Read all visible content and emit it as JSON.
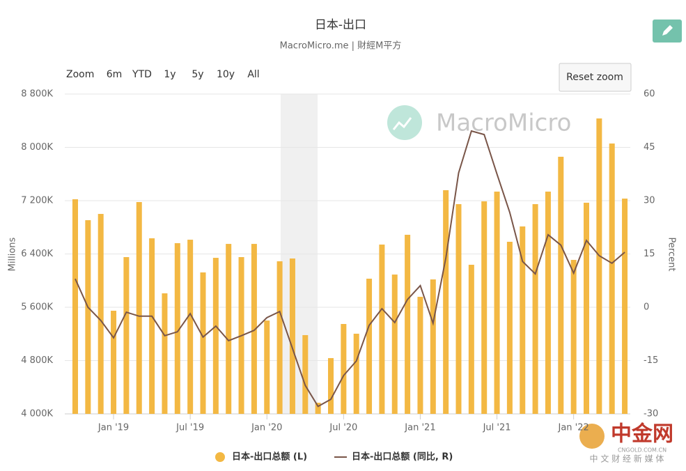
{
  "chart_data": {
    "type": "combo",
    "title": "日本-出口",
    "subtitle": "MacroMicro.me | 財經M平方",
    "zoom_buttons": [
      "Zoom",
      "6m",
      "YTD",
      "1y",
      "5y",
      "10y",
      "All"
    ],
    "reset_button": "Reset zoom",
    "watermark": "MacroMicro",
    "corner_logo": {
      "name": "中金网",
      "site": "CNGOLD.COM.CN",
      "slogan": "中 文 财 经 新 媒 体"
    },
    "ylabel": "Millions",
    "y2label": "Percent",
    "categories": [
      null,
      null,
      null,
      "Jan '19",
      null,
      null,
      null,
      null,
      null,
      "Jul '19",
      null,
      null,
      null,
      null,
      null,
      "Jan '20",
      null,
      null,
      null,
      null,
      null,
      "Jul '20",
      null,
      null,
      null,
      null,
      null,
      "Jan '21",
      null,
      null,
      null,
      null,
      null,
      "Jul '21",
      null,
      null,
      null,
      null,
      null,
      "Jan '22",
      null,
      null,
      null,
      null
    ],
    "ylim": [
      4000000,
      8800000
    ],
    "yticks": [
      {
        "value": 4000000,
        "label": "4 000K"
      },
      {
        "value": 4800000,
        "label": "4 800K"
      },
      {
        "value": 5600000,
        "label": "5 600K"
      },
      {
        "value": 6400000,
        "label": "6 400K"
      },
      {
        "value": 7200000,
        "label": "7 200K"
      },
      {
        "value": 8000000,
        "label": "8 000K"
      },
      {
        "value": 8800000,
        "label": "8 800K"
      }
    ],
    "y2lim": [
      -30,
      60
    ],
    "y2ticks": [
      -30,
      -15,
      0,
      15,
      30,
      45,
      60
    ],
    "grid": true,
    "series": [
      {
        "name": "日本-出口总额 (L)",
        "type": "bar",
        "color": "#f3b843",
        "values": [
          7221000,
          6907000,
          7001000,
          5548000,
          6353000,
          7179000,
          6635000,
          5809000,
          6562000,
          6614000,
          6123000,
          6342000,
          6551000,
          6353000,
          6551000,
          5401000,
          6290000,
          6332000,
          5182000,
          4167000,
          4837000,
          5349000,
          5203000,
          6029000,
          6541000,
          6091000,
          6688000,
          5757000,
          6018000,
          7357000,
          7148000,
          6238000,
          7190000,
          7336000,
          6583000,
          6813000,
          7148000,
          7336000,
          7859000,
          6311000,
          7169000,
          8434000,
          8058000,
          7231000
        ]
      },
      {
        "name": "日本-出口总额 (同比, R)",
        "type": "line",
        "axis": "y2",
        "color": "#795548",
        "values": [
          8.0,
          0,
          -3.7,
          -8.6,
          -1.4,
          -2.5,
          -2.5,
          -8.0,
          -6.9,
          -1.8,
          -8.4,
          -5.3,
          -9.4,
          -8.0,
          -6.5,
          -2.9,
          -1.2,
          -11.6,
          -22.0,
          -27.9,
          -25.9,
          -19.2,
          -15.1,
          -5.1,
          -0.4,
          -4.3,
          2.2,
          6.1,
          -4.5,
          13.9,
          37.8,
          49.6,
          48.6,
          37.5,
          26.7,
          12.9,
          9.4,
          20.4,
          17.5,
          9.6,
          18.8,
          14.5,
          12.4,
          15.5
        ]
      }
    ]
  }
}
